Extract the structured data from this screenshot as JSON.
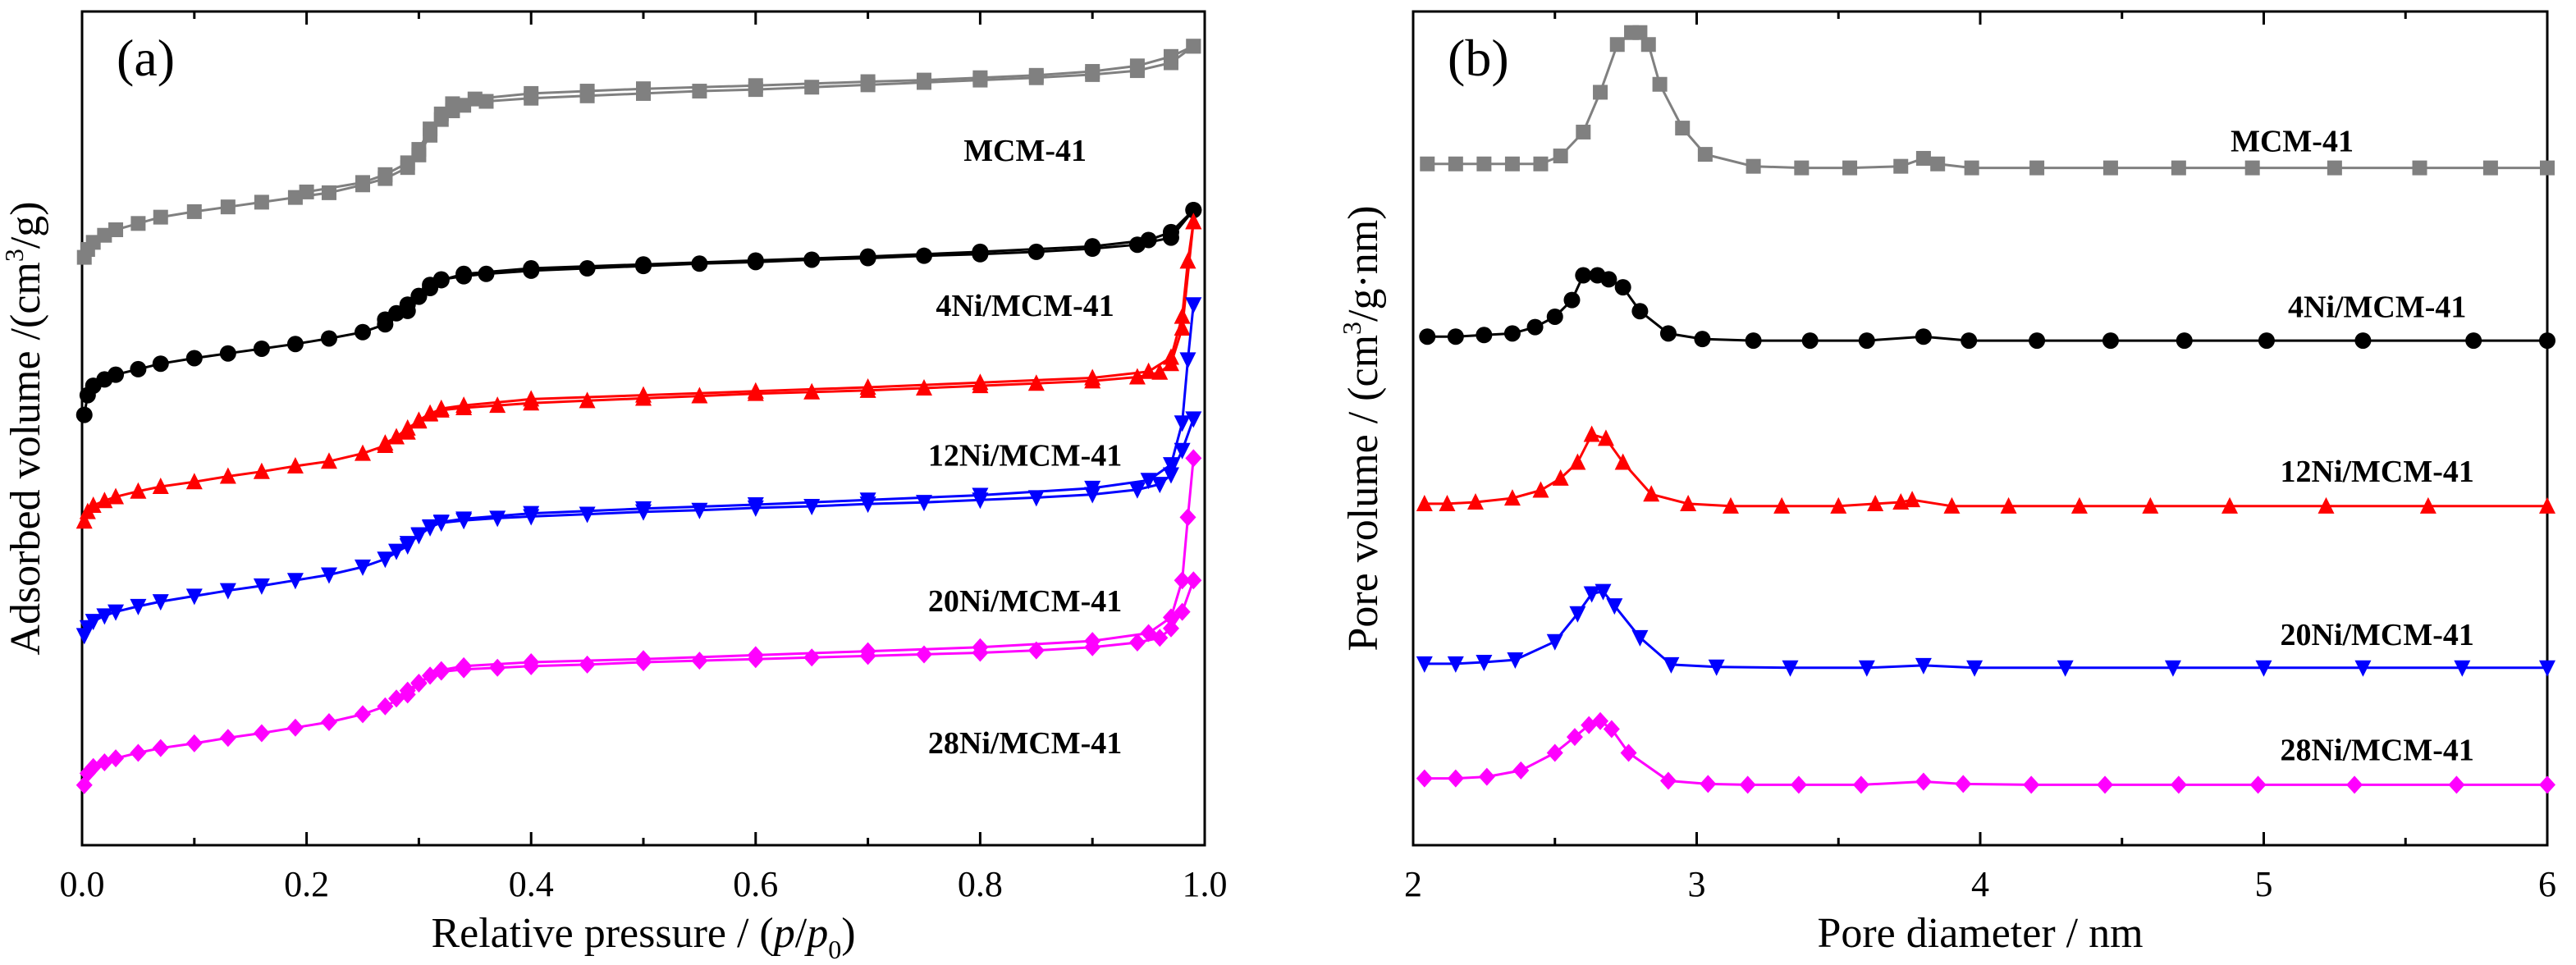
{
  "chart_data": [
    {
      "id": "a",
      "type": "line",
      "panel_label": "(a)",
      "xlabel_parts": [
        "Relative pressure / (",
        "p",
        "/",
        "p",
        "0",
        ")"
      ],
      "ylabel_parts": [
        "Adsorbed volume /(cm",
        "3",
        "/g)"
      ],
      "xlim": [
        0.0,
        1.0
      ],
      "ylim": [
        0,
        100
      ],
      "y_ticks_shown": false,
      "xticks": [
        0.0,
        0.2,
        0.4,
        0.6,
        0.8,
        1.0
      ],
      "xtick_labels": [
        "0.0",
        "0.2",
        "0.4",
        "0.6",
        "0.8",
        "1.0"
      ],
      "series": [
        {
          "name": "MCM-41",
          "color": "#808080",
          "marker": "square",
          "adsorption": {
            "x": [
              0.002,
              0.005,
              0.01,
              0.02,
              0.03,
              0.05,
              0.07,
              0.1,
              0.13,
              0.16,
              0.19,
              0.22,
              0.25,
              0.27,
              0.29,
              0.3,
              0.31,
              0.32,
              0.33,
              0.34,
              0.36,
              0.4,
              0.45,
              0.5,
              0.55,
              0.6,
              0.65,
              0.7,
              0.75,
              0.8,
              0.85,
              0.9,
              0.94,
              0.97,
              0.99
            ],
            "y": [
              71.5,
              72.5,
              73.4,
              74.3,
              75.0,
              75.8,
              76.6,
              77.3,
              77.9,
              78.5,
              79.1,
              79.7,
              80.7,
              81.5,
              82.9,
              84.5,
              87.0,
              89.0,
              90.1,
              90.8,
              91.3,
              91.7,
              92.0,
              92.3,
              92.6,
              92.8,
              93.1,
              93.4,
              93.7,
              94.0,
              94.3,
              94.7,
              95.2,
              96.2,
              98.3
            ]
          },
          "desorption": {
            "x": [
              0.99,
              0.97,
              0.94,
              0.9,
              0.85,
              0.8,
              0.75,
              0.7,
              0.6,
              0.5,
              0.45,
              0.4,
              0.35,
              0.33,
              0.32,
              0.31,
              0.3,
              0.29,
              0.27,
              0.25,
              0.2
            ],
            "y": [
              98.3,
              97.0,
              95.8,
              95.1,
              94.6,
              94.3,
              94.0,
              93.8,
              93.3,
              92.9,
              92.6,
              92.3,
              91.6,
              91.0,
              89.7,
              87.8,
              85.2,
              83.5,
              82.0,
              81.0,
              79.8
            ]
          }
        },
        {
          "name": "4Ni/MCM-41",
          "color": "#000000",
          "marker": "circle",
          "adsorption": {
            "x": [
              0.002,
              0.005,
              0.01,
              0.02,
              0.03,
              0.05,
              0.07,
              0.1,
              0.13,
              0.16,
              0.19,
              0.22,
              0.25,
              0.27,
              0.29,
              0.3,
              0.31,
              0.32,
              0.34,
              0.36,
              0.4,
              0.45,
              0.5,
              0.55,
              0.6,
              0.65,
              0.7,
              0.75,
              0.8,
              0.85,
              0.9,
              0.94,
              0.97,
              0.99
            ],
            "y": [
              51.5,
              54.0,
              55.2,
              56.0,
              56.6,
              57.3,
              58.0,
              58.7,
              59.3,
              59.9,
              60.5,
              61.2,
              62.0,
              63.0,
              64.7,
              66.5,
              68.0,
              68.7,
              69.1,
              69.4,
              69.8,
              70.1,
              70.4,
              70.7,
              70.9,
              71.2,
              71.4,
              71.7,
              71.9,
              72.2,
              72.6,
              73.1,
              74.0,
              77.5
            ]
          },
          "desorption": {
            "x": [
              0.99,
              0.97,
              0.95,
              0.9,
              0.8,
              0.7,
              0.6,
              0.5,
              0.4,
              0.34,
              0.32,
              0.31,
              0.3,
              0.29,
              0.28,
              0.27
            ],
            "y": [
              77.5,
              74.7,
              73.7,
              72.9,
              72.2,
              71.6,
              71.1,
              70.6,
              70.1,
              69.4,
              68.6,
              67.6,
              66.6,
              65.5,
              64.4,
              63.6
            ]
          }
        },
        {
          "name": "12Ni/MCM-41",
          "color": "#ff0000",
          "marker": "triangle-up",
          "adsorption": {
            "x": [
              0.002,
              0.005,
              0.01,
              0.02,
              0.03,
              0.05,
              0.07,
              0.1,
              0.13,
              0.16,
              0.19,
              0.22,
              0.25,
              0.27,
              0.29,
              0.3,
              0.31,
              0.32,
              0.34,
              0.37,
              0.4,
              0.45,
              0.5,
              0.55,
              0.6,
              0.65,
              0.7,
              0.75,
              0.8,
              0.85,
              0.9,
              0.94,
              0.96,
              0.97,
              0.98,
              0.99
            ],
            "y": [
              38.0,
              39.2,
              40.0,
              40.6,
              41.1,
              41.8,
              42.4,
              43.0,
              43.7,
              44.3,
              45.0,
              45.6,
              46.6,
              47.6,
              49.3,
              50.8,
              51.7,
              52.1,
              52.4,
              52.7,
              53.0,
              53.3,
              53.6,
              53.9,
              54.2,
              54.4,
              54.6,
              54.9,
              55.2,
              55.5,
              55.8,
              56.3,
              56.9,
              58.0,
              62.5,
              76.0
            ]
          },
          "desorption": {
            "x": [
              0.99,
              0.985,
              0.98,
              0.97,
              0.95,
              0.9,
              0.8,
              0.7,
              0.6,
              0.5,
              0.4,
              0.34,
              0.32,
              0.31,
              0.3,
              0.29,
              0.28,
              0.27
            ],
            "y": [
              76.0,
              71.0,
              64.0,
              58.8,
              57.0,
              56.2,
              55.6,
              55.0,
              54.5,
              54.0,
              53.5,
              52.7,
              52.3,
              51.6,
              50.7,
              49.8,
              48.7,
              47.9
            ]
          }
        },
        {
          "name": "20Ni/MCM-41",
          "color": "#0000ff",
          "marker": "triangle-down",
          "adsorption": {
            "x": [
              0.002,
              0.005,
              0.01,
              0.02,
              0.03,
              0.05,
              0.07,
              0.1,
              0.13,
              0.16,
              0.19,
              0.22,
              0.25,
              0.27,
              0.29,
              0.3,
              0.31,
              0.32,
              0.34,
              0.37,
              0.4,
              0.45,
              0.5,
              0.55,
              0.6,
              0.65,
              0.7,
              0.75,
              0.8,
              0.85,
              0.9,
              0.94,
              0.96,
              0.97,
              0.98,
              0.99
            ],
            "y": [
              23.5,
              24.5,
              25.3,
              26.0,
              26.5,
              27.2,
              27.8,
              28.5,
              29.2,
              29.8,
              30.5,
              31.2,
              32.2,
              33.2,
              34.9,
              36.3,
              37.3,
              37.8,
              38.1,
              38.4,
              38.6,
              38.9,
              39.2,
              39.4,
              39.7,
              39.9,
              40.2,
              40.4,
              40.7,
              41.0,
              41.4,
              42.0,
              42.7,
              43.9,
              47.0,
              51.0
            ]
          },
          "desorption": {
            "x": [
              0.99,
              0.985,
              0.98,
              0.97,
              0.95,
              0.9,
              0.8,
              0.7,
              0.6,
              0.5,
              0.4,
              0.34,
              0.32,
              0.31,
              0.3,
              0.29,
              0.28
            ],
            "y": [
              65.5,
              58.5,
              50.5,
              45.2,
              43.2,
              42.2,
              41.3,
              40.7,
              40.1,
              39.6,
              39.0,
              38.3,
              37.9,
              37.2,
              36.2,
              35.2,
              34.2
            ]
          }
        },
        {
          "name": "28Ni/MCM-41",
          "color": "#ff00ff",
          "marker": "diamond",
          "adsorption": {
            "x": [
              0.002,
              0.005,
              0.01,
              0.02,
              0.03,
              0.05,
              0.07,
              0.1,
              0.13,
              0.16,
              0.19,
              0.22,
              0.25,
              0.27,
              0.29,
              0.3,
              0.31,
              0.32,
              0.34,
              0.37,
              0.4,
              0.45,
              0.5,
              0.55,
              0.6,
              0.65,
              0.7,
              0.75,
              0.8,
              0.85,
              0.9,
              0.94,
              0.96,
              0.97,
              0.98,
              0.99
            ],
            "y": [
              4.5,
              6.0,
              6.8,
              7.4,
              7.9,
              8.6,
              9.2,
              9.8,
              10.5,
              11.1,
              11.8,
              12.5,
              13.5,
              14.5,
              16.0,
              17.4,
              18.4,
              18.9,
              19.2,
              19.4,
              19.6,
              19.8,
              20.1,
              20.3,
              20.5,
              20.7,
              20.9,
              21.1,
              21.3,
              21.6,
              22.0,
              22.6,
              23.2,
              24.4,
              26.5,
              30.5
            ]
          },
          "desorption": {
            "x": [
              0.99,
              0.985,
              0.98,
              0.97,
              0.95,
              0.9,
              0.8,
              0.7,
              0.6,
              0.5,
              0.4,
              0.34,
              0.32,
              0.31,
              0.3,
              0.29,
              0.28
            ],
            "y": [
              46.0,
              38.5,
              30.5,
              25.8,
              23.8,
              22.8,
              22.0,
              21.5,
              21.0,
              20.5,
              20.1,
              19.6,
              19.1,
              18.4,
              17.5,
              16.5,
              15.5
            ]
          }
        }
      ],
      "series_labels": [
        {
          "text": "MCM-41",
          "x": 0.84,
          "y": 85.0
        },
        {
          "text": "4Ni/MCM-41",
          "x": 0.84,
          "y": 65.3
        },
        {
          "text": "12Ni/MCM-41",
          "x": 0.84,
          "y": 46.3
        },
        {
          "text": "20Ni/MCM-41",
          "x": 0.84,
          "y": 27.8
        },
        {
          "text": "28Ni/MCM-41",
          "x": 0.84,
          "y": 9.8
        }
      ]
    },
    {
      "id": "b",
      "type": "line",
      "panel_label": "(b)",
      "xlabel": "Pore diameter / nm",
      "ylabel_parts": [
        "Pore volume / (cm",
        "3",
        "/g·nm)"
      ],
      "xlim": [
        2,
        6
      ],
      "ylim": [
        0,
        100
      ],
      "y_ticks_shown": false,
      "xticks": [
        2,
        3,
        4,
        5,
        6
      ],
      "xtick_labels": [
        "2",
        "3",
        "4",
        "5",
        "6"
      ],
      "series": [
        {
          "name": "MCM-41",
          "color": "#808080",
          "marker": "square",
          "x": [
            2.05,
            2.15,
            2.25,
            2.35,
            2.45,
            2.52,
            2.6,
            2.66,
            2.72,
            2.77,
            2.8,
            2.83,
            2.87,
            2.95,
            3.03,
            3.2,
            3.37,
            3.54,
            3.72,
            3.8,
            3.85,
            3.97,
            4.2,
            4.46,
            4.7,
            4.96,
            5.25,
            5.55,
            5.8,
            6.0
          ],
          "y": [
            82.5,
            82.5,
            82.5,
            82.5,
            82.5,
            83.5,
            86.5,
            91.5,
            97.5,
            99.0,
            99.0,
            97.5,
            92.5,
            87.0,
            83.7,
            82.2,
            82.0,
            82.0,
            82.2,
            83.2,
            82.5,
            82.0,
            82.0,
            82.0,
            82.0,
            82.0,
            82.0,
            82.0,
            82.0,
            82.0
          ]
        },
        {
          "name": "4Ni/MCM-41",
          "color": "#000000",
          "marker": "circle",
          "x": [
            2.05,
            2.15,
            2.25,
            2.35,
            2.43,
            2.5,
            2.56,
            2.6,
            2.65,
            2.69,
            2.74,
            2.8,
            2.9,
            3.02,
            3.2,
            3.4,
            3.6,
            3.8,
            3.96,
            4.2,
            4.46,
            4.72,
            5.01,
            5.35,
            5.74,
            6.0
          ],
          "y": [
            60.8,
            60.8,
            61.0,
            61.2,
            62.0,
            63.3,
            65.4,
            68.5,
            68.5,
            68.0,
            67.0,
            64.0,
            61.2,
            60.5,
            60.3,
            60.3,
            60.3,
            60.8,
            60.3,
            60.3,
            60.3,
            60.3,
            60.3,
            60.3,
            60.3,
            60.3
          ]
        },
        {
          "name": "12Ni/MCM-41",
          "color": "#ff0000",
          "marker": "triangle-up",
          "x": [
            2.04,
            2.12,
            2.22,
            2.35,
            2.45,
            2.52,
            2.58,
            2.63,
            2.68,
            2.74,
            2.84,
            2.97,
            3.12,
            3.3,
            3.5,
            3.63,
            3.72,
            3.76,
            3.9,
            4.1,
            4.35,
            4.6,
            4.88,
            5.22,
            5.58,
            6.0
          ],
          "y": [
            39.8,
            39.8,
            40.0,
            40.5,
            41.5,
            43.0,
            45.0,
            48.5,
            48.0,
            45.0,
            41.0,
            39.8,
            39.5,
            39.5,
            39.5,
            39.8,
            40.0,
            40.3,
            39.5,
            39.5,
            39.5,
            39.5,
            39.5,
            39.5,
            39.5,
            39.5
          ]
        },
        {
          "name": "20Ni/MCM-41",
          "color": "#0000ff",
          "marker": "triangle-down",
          "x": [
            2.04,
            2.15,
            2.25,
            2.36,
            2.5,
            2.58,
            2.63,
            2.67,
            2.71,
            2.8,
            2.91,
            3.07,
            3.33,
            3.6,
            3.8,
            3.98,
            4.3,
            4.68,
            5.0,
            5.35,
            5.7,
            6.0
          ],
          "y": [
            19.7,
            19.7,
            19.9,
            20.2,
            22.5,
            26.0,
            28.5,
            28.8,
            27.0,
            23.0,
            19.6,
            19.3,
            19.2,
            19.2,
            19.5,
            19.2,
            19.2,
            19.2,
            19.2,
            19.2,
            19.2,
            19.2
          ]
        },
        {
          "name": "28Ni/MCM-41",
          "color": "#ff00ff",
          "marker": "diamond",
          "x": [
            2.04,
            2.15,
            2.26,
            2.38,
            2.5,
            2.57,
            2.62,
            2.66,
            2.7,
            2.76,
            2.9,
            3.04,
            3.18,
            3.36,
            3.58,
            3.8,
            3.94,
            4.18,
            4.44,
            4.7,
            4.98,
            5.32,
            5.68,
            6.0
          ],
          "y": [
            5.3,
            5.3,
            5.5,
            6.3,
            8.5,
            10.5,
            12.0,
            12.5,
            11.5,
            8.5,
            5.0,
            4.6,
            4.5,
            4.5,
            4.5,
            4.9,
            4.6,
            4.5,
            4.5,
            4.5,
            4.5,
            4.5,
            4.5,
            4.5
          ]
        }
      ],
      "series_labels": [
        {
          "text": "MCM-41",
          "x": 5.1,
          "y": 85.3
        },
        {
          "text": "4Ni/MCM-41",
          "x": 5.4,
          "y": 64.5
        },
        {
          "text": "12Ni/MCM-41",
          "x": 5.4,
          "y": 43.8
        },
        {
          "text": "20Ni/MCM-41",
          "x": 5.4,
          "y": 23.3
        },
        {
          "text": "28Ni/MCM-41",
          "x": 5.4,
          "y": 8.8
        }
      ]
    }
  ]
}
